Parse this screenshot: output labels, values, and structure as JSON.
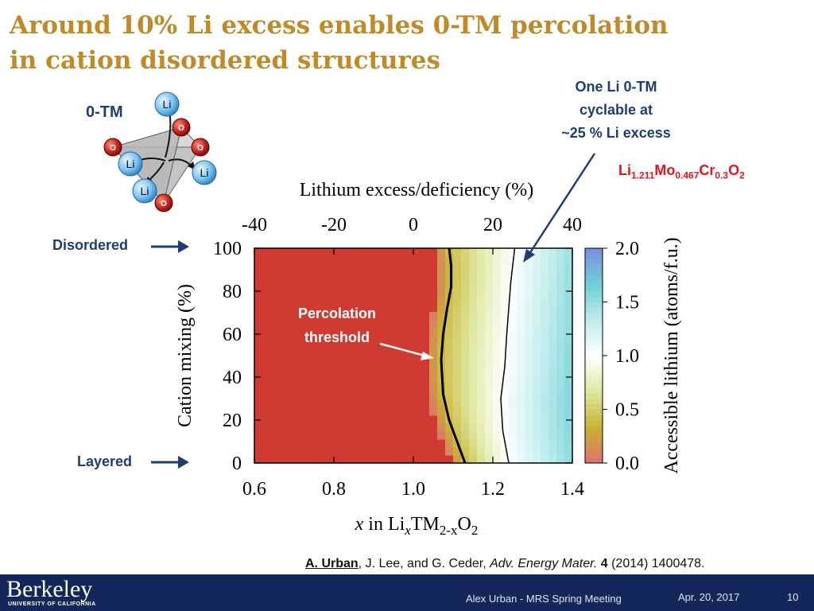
{
  "slide": {
    "title_line1": "Around 10% Li excess enables 0-TM percolation",
    "title_line2": "in cation disordered structures",
    "zero_tm_label": "0-TM",
    "annotation_right": [
      "One Li 0-TM",
      "cyclable at",
      "~25 % Li excess"
    ],
    "formula": {
      "parts": [
        {
          "t": "Li",
          "sub": "1.211"
        },
        {
          "t": "Mo",
          "sub": "0.467"
        },
        {
          "t": "Cr",
          "sub": "0.3"
        },
        {
          "t": "O",
          "sub": "2"
        }
      ]
    },
    "label_disordered": "Disordered",
    "label_layered": "Layered",
    "percolation_label": [
      "Percolation",
      "threshold"
    ],
    "structure": {
      "li_label": "Li",
      "o_label": "O"
    },
    "citation": {
      "author_bold": "A. Urban",
      "rest": ", J. Lee, and G. Ceder, ",
      "journal": "Adv. Energy Mater.",
      "volume": "4",
      "details": " (2014) 1400478."
    },
    "footer": {
      "logo": "Berkeley",
      "logo_sub": "UNIVERSITY OF CALIFORNIA",
      "presenter": "Alex Urban - MRS Spring Meeting",
      "date": "Apr. 20, 2017",
      "page": "10"
    }
  },
  "chart_data": {
    "type": "heatmap",
    "top_axis": {
      "label": "Lithium excess/deficiency (%)",
      "ticks": [
        -40,
        -20,
        0,
        20,
        40
      ]
    },
    "x_axis": {
      "label_parts": [
        "x",
        " in Li",
        "x",
        "TM",
        "2-x",
        "O",
        "2"
      ],
      "ticks": [
        "0.6",
        "0.8",
        "1.0",
        "1.2",
        "1.4"
      ],
      "range": [
        0.6,
        1.4
      ]
    },
    "y_axis": {
      "label": "Cation mixing (%)",
      "ticks": [
        "0",
        "20",
        "40",
        "60",
        "80",
        "100"
      ],
      "range": [
        0,
        100
      ]
    },
    "colorbar": {
      "label": "Accessible lithium (atoms/f.u.)",
      "ticks": [
        "0.0",
        "0.5",
        "1.0",
        "1.5",
        "2.0"
      ],
      "range": [
        0,
        2.0
      ],
      "colors": [
        "#e07070",
        "#c8b232",
        "#dfe8a0",
        "#ffffff",
        "#c0ecec",
        "#6ecfd6",
        "#7a8fe0"
      ]
    },
    "background_color": "#cf3a33",
    "percolation_threshold": {
      "x": [
        1.13,
        1.11,
        1.09,
        1.075,
        1.07,
        1.075,
        1.085,
        1.095,
        1.095,
        1.09
      ],
      "y": [
        0,
        10,
        20,
        32,
        48,
        60,
        72,
        82,
        92,
        100
      ]
    },
    "one_li_contour": {
      "x": [
        1.24,
        1.225,
        1.22,
        1.23,
        1.235,
        1.24,
        1.245,
        1.25,
        1.255
      ],
      "y": [
        0,
        15,
        30,
        45,
        60,
        72,
        84,
        92,
        100
      ]
    }
  }
}
